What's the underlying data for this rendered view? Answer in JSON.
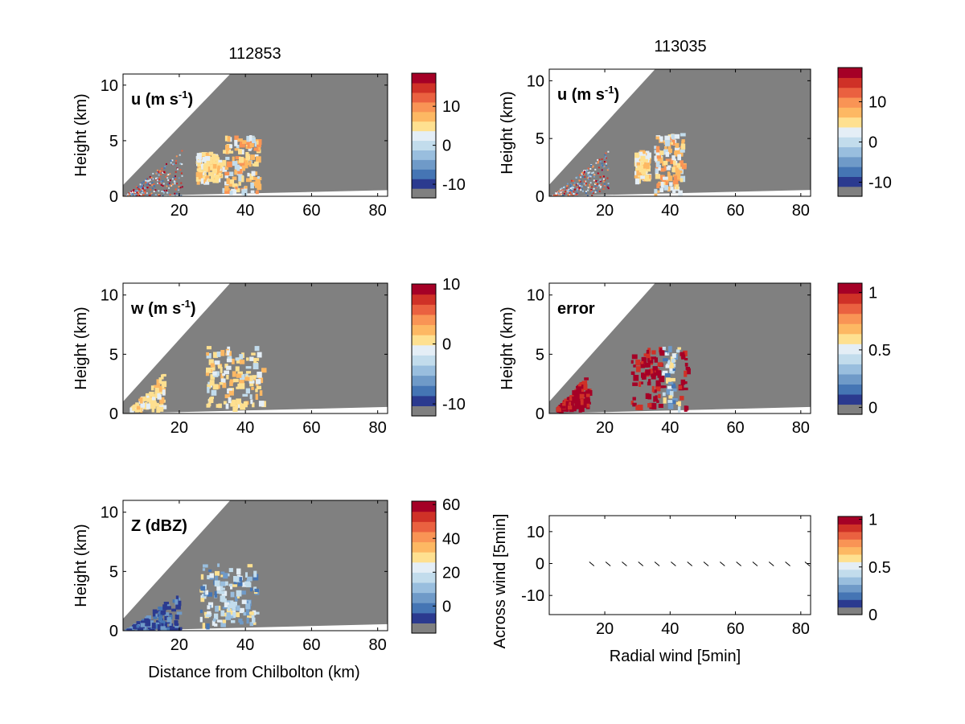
{
  "figure": {
    "titles": [
      "112853",
      "113035"
    ],
    "ylabel_height": "Height (km)",
    "xlabel_distance": "Distance from Chilbolton (km)"
  },
  "palette": [
    "#808080",
    "#2b3a8f",
    "#4575b4",
    "#6f9ac8",
    "#99bede",
    "#c2dcec",
    "#e4eef6",
    "#fee090",
    "#fdb863",
    "#f99455",
    "#ea6140",
    "#cf3127",
    "#a50026"
  ],
  "chart_data": [
    {
      "type": "heatmap",
      "panel": "u",
      "annotation": "u (m s",
      "annotation_sup": "-1",
      "xlim": [
        3,
        83
      ],
      "ylim": [
        0,
        11
      ],
      "xticks": [
        20,
        40,
        60,
        80
      ],
      "yticks": [
        0,
        5,
        10
      ],
      "colorbar_ticks": [
        -10,
        0,
        10
      ],
      "colorbar_range": [
        -13.5,
        18.5
      ],
      "features": [
        {
          "x": [
            3,
            21
          ],
          "y": [
            0,
            4.3
          ],
          "level": "mixed-noise"
        },
        {
          "x": [
            25,
            32
          ],
          "y": [
            1.5,
            4.0
          ],
          "level": "positive-weak"
        },
        {
          "x": [
            33,
            44
          ],
          "y": [
            0.5,
            5.5
          ],
          "level": "positive-moderate"
        }
      ]
    },
    {
      "type": "heatmap",
      "panel": "u",
      "annotation": "u (m s",
      "annotation_sup": "-1",
      "xlim": [
        3,
        83
      ],
      "ylim": [
        0,
        11
      ],
      "xticks": [
        20,
        40,
        60,
        80
      ],
      "yticks": [
        0,
        5,
        10
      ],
      "colorbar_ticks": [
        -10,
        0,
        10
      ],
      "colorbar_range": [
        -13.5,
        18.5
      ],
      "features": [
        {
          "x": [
            3,
            21
          ],
          "y": [
            0,
            4.0
          ],
          "level": "mixed-noise"
        },
        {
          "x": [
            29,
            33
          ],
          "y": [
            1.5,
            4.0
          ],
          "level": "positive-weak"
        },
        {
          "x": [
            35,
            44
          ],
          "y": [
            0.5,
            5.5
          ],
          "level": "positive-moderate"
        }
      ]
    },
    {
      "type": "heatmap",
      "panel": "w",
      "annotation": "w (m s",
      "annotation_sup": "-1",
      "xlim": [
        3,
        83
      ],
      "ylim": [
        0,
        11
      ],
      "xticks": [
        20,
        40,
        60,
        80
      ],
      "yticks": [
        0,
        5,
        10
      ],
      "colorbar_ticks": [
        -10,
        0,
        10
      ],
      "colorbar_range": [
        -12,
        10
      ],
      "features": [
        {
          "x": [
            5,
            15
          ],
          "y": [
            0.5,
            3.5
          ],
          "level": "near-zero-streaks"
        },
        {
          "x": [
            28,
            45
          ],
          "y": [
            0.5,
            5.7
          ],
          "level": "near-zero"
        }
      ]
    },
    {
      "type": "heatmap",
      "panel": "error",
      "annotation": "error",
      "annotation_sup": "",
      "xlim": [
        3,
        83
      ],
      "ylim": [
        0,
        11
      ],
      "xticks": [
        20,
        40,
        60,
        80
      ],
      "yticks": [
        0,
        5,
        10
      ],
      "colorbar_ticks": [
        0,
        0.5,
        1
      ],
      "colorbar_range": [
        -0.06,
        1.08
      ],
      "features": [
        {
          "x": [
            5,
            15
          ],
          "y": [
            0.5,
            3.5
          ],
          "level": "high"
        },
        {
          "x": [
            28,
            45
          ],
          "y": [
            0.5,
            5.7
          ],
          "level": "high-with-low-core"
        }
      ]
    },
    {
      "type": "heatmap",
      "panel": "Z",
      "annotation": "Z (dBZ)",
      "annotation_sup": "",
      "xlim": [
        3,
        83
      ],
      "ylim": [
        0,
        11
      ],
      "xticks": [
        20,
        40,
        60,
        80
      ],
      "yticks": [
        0,
        5,
        10
      ],
      "colorbar_ticks": [
        0,
        20,
        40,
        60
      ],
      "colorbar_range": [
        -16,
        62
      ],
      "features": [
        {
          "x": [
            3,
            20
          ],
          "y": [
            0,
            3.5
          ],
          "level": "low"
        },
        {
          "x": [
            26,
            43
          ],
          "y": [
            0.5,
            5.7
          ],
          "level": "moderate"
        }
      ]
    },
    {
      "type": "scatter",
      "panel": "wind",
      "annotation": "",
      "annotation_sup": "",
      "xlabel": "Radial wind [5min]",
      "ylabel": "Across wind [5min]",
      "xlim": [
        3,
        83
      ],
      "ylim": [
        -16,
        15
      ],
      "xticks": [
        20,
        40,
        60,
        80
      ],
      "yticks": [
        -10,
        0,
        10
      ],
      "colorbar_ticks": [
        0,
        0.5,
        1
      ],
      "colorbar_range": [
        0,
        1.03
      ],
      "x": [
        16,
        21,
        26,
        31,
        36,
        41,
        46,
        51,
        56,
        61,
        66,
        71,
        76,
        82
      ],
      "y": [
        0,
        0,
        0,
        0,
        0,
        0,
        0,
        0,
        0,
        0,
        0,
        0,
        0,
        0
      ]
    }
  ]
}
